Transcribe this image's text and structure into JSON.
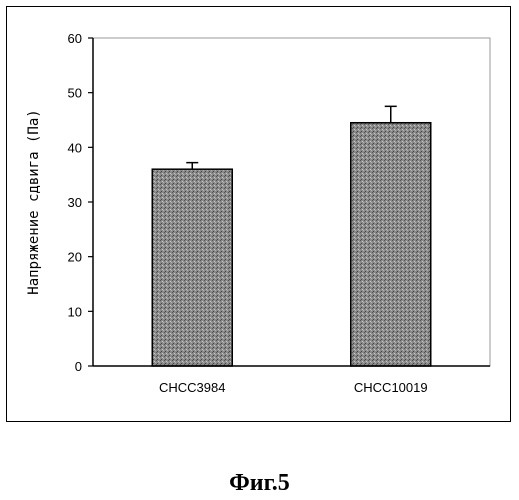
{
  "caption": "Фиг.5",
  "chart_data": {
    "type": "bar",
    "categories": [
      "CHCC3984",
      "CHCC10019"
    ],
    "values": [
      36,
      44.5
    ],
    "errors": [
      1.2,
      3
    ],
    "ylabel": "Напряжение сдвига (Па)",
    "xlabel": "",
    "ylim": [
      0,
      60
    ],
    "yticks": [
      0,
      10,
      20,
      30,
      40,
      50,
      60
    ],
    "grid": false,
    "bar_color": "#8a8a8a"
  }
}
